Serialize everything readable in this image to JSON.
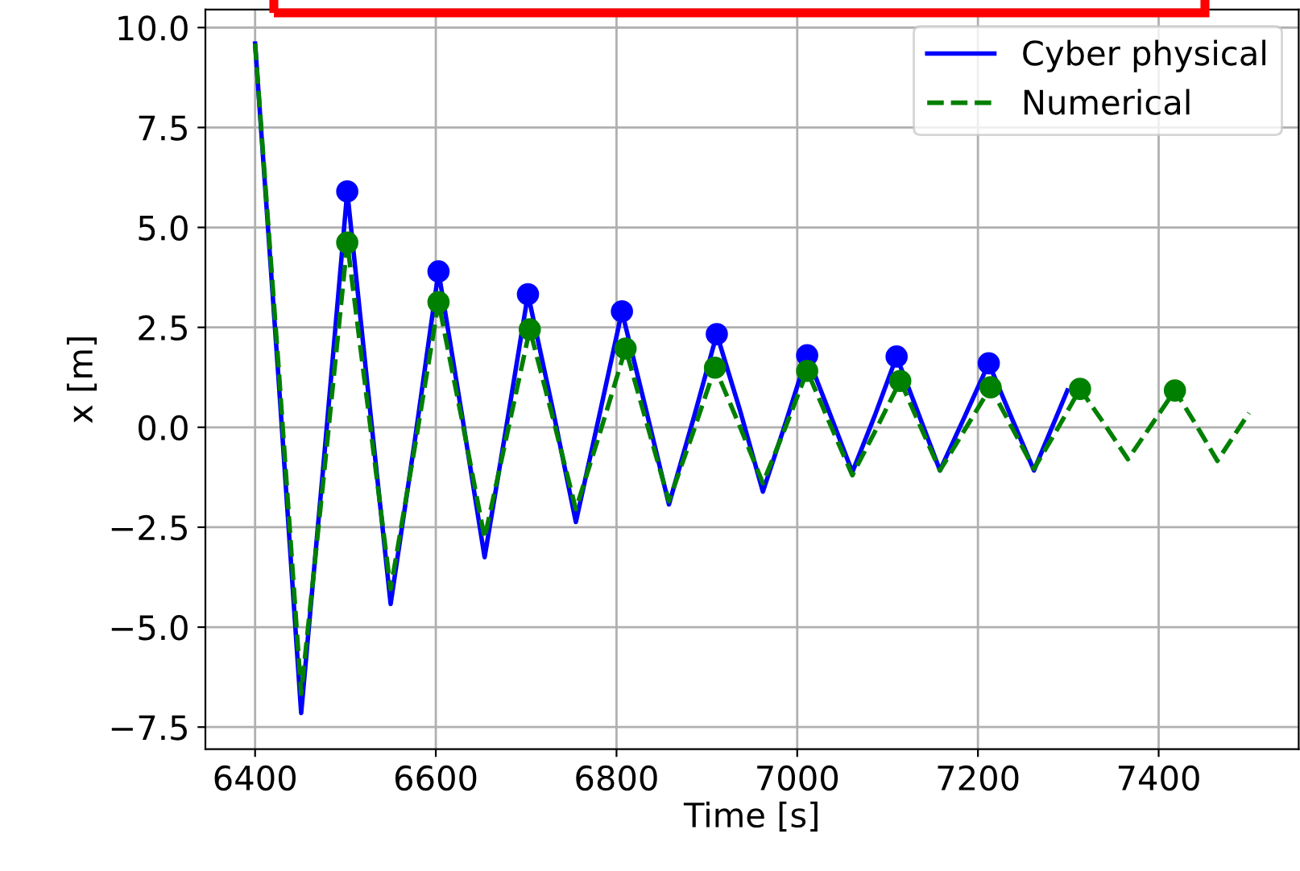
{
  "chart_data": {
    "type": "line",
    "xlabel": "Time [s]",
    "ylabel": "x [m]",
    "xlim": [
      6345,
      7555
    ],
    "ylim": [
      -8.05,
      10.45
    ],
    "xticks": [
      6400,
      6600,
      6800,
      7000,
      7200,
      7400
    ],
    "yticks": [
      {
        "value": -7.5,
        "label": "−7.5"
      },
      {
        "value": -5.0,
        "label": "−5.0"
      },
      {
        "value": -2.5,
        "label": "−2.5"
      },
      {
        "value": 0.0,
        "label": "0.0"
      },
      {
        "value": 2.5,
        "label": "2.5"
      },
      {
        "value": 5.0,
        "label": "5.0"
      },
      {
        "value": 7.5,
        "label": "7.5"
      },
      {
        "value": 10.0,
        "label": "10.0"
      }
    ],
    "grid": true,
    "legend": "top right",
    "series": [
      {
        "name": "Cyber physical",
        "color": "#0000ff",
        "line_style": "solid",
        "x": [
          6400,
          6426,
          6451,
          6477,
          6502,
          6526,
          6550,
          6577,
          6603,
          6629,
          6654,
          6678,
          6702,
          6729,
          6755,
          6781,
          6806,
          6832,
          6858,
          6885,
          6911,
          6937,
          6962,
          6987,
          7011,
          7036,
          7061,
          7086,
          7110,
          7134,
          7158,
          7185,
          7212,
          7237,
          7262,
          7299
        ],
        "values": [
          9.6,
          1.2,
          -7.15,
          -0.6,
          5.9,
          0.7,
          -4.42,
          -0.3,
          3.9,
          0.3,
          -3.25,
          0.0,
          3.33,
          0.5,
          -2.37,
          0.3,
          2.9,
          0.5,
          -1.93,
          0.2,
          2.33,
          0.4,
          -1.61,
          0.1,
          1.8,
          0.35,
          -1.12,
          0.3,
          1.77,
          0.35,
          -1.08,
          0.25,
          1.6,
          0.25,
          -1.08,
          0.92
        ]
      },
      {
        "name": "Numerical",
        "color": "#008000",
        "line_style": "dashed",
        "x": [
          6400,
          6426,
          6451,
          6477,
          6502,
          6526,
          6550,
          6577,
          6603,
          6629,
          6654,
          6679,
          6704,
          6730,
          6755,
          6783,
          6810,
          6834,
          6858,
          6884,
          6909,
          6936,
          6962,
          6987,
          7011,
          7036,
          7061,
          7088,
          7114,
          7136,
          7158,
          7186,
          7214,
          7238,
          7262,
          7288,
          7313,
          7340,
          7366,
          7392,
          7418,
          7442,
          7465,
          7500
        ],
        "values": [
          9.6,
          1.5,
          -6.67,
          -1.0,
          4.62,
          0.3,
          -4.05,
          -0.46,
          3.13,
          0.18,
          -2.77,
          -0.16,
          2.45,
          0.2,
          -2.05,
          -0.04,
          1.97,
          0.06,
          -1.85,
          -0.18,
          1.49,
          0.05,
          -1.4,
          0.0,
          1.41,
          0.1,
          -1.2,
          -0.02,
          1.16,
          0.04,
          -1.08,
          -0.04,
          1.0,
          -0.02,
          -1.04,
          -0.04,
          0.96,
          0.08,
          -0.8,
          0.06,
          0.92,
          0.04,
          -0.84,
          0.36
        ]
      },
      {
        "type": "scatter",
        "color": "#0000ff",
        "marker": "circle",
        "x": [
          6502,
          6603,
          6702,
          6806,
          6911,
          7011,
          7110,
          7212
        ],
        "values": [
          5.9,
          3.9,
          3.33,
          2.9,
          2.33,
          1.8,
          1.77,
          1.6
        ]
      },
      {
        "type": "scatter",
        "color": "#008000",
        "marker": "circle",
        "x": [
          6502,
          6603,
          6704,
          6810,
          6909,
          7011,
          7114,
          7214,
          7313,
          7418
        ],
        "values": [
          4.62,
          3.13,
          2.45,
          1.97,
          1.49,
          1.41,
          1.16,
          1.0,
          0.96,
          0.92
        ]
      }
    ]
  }
}
